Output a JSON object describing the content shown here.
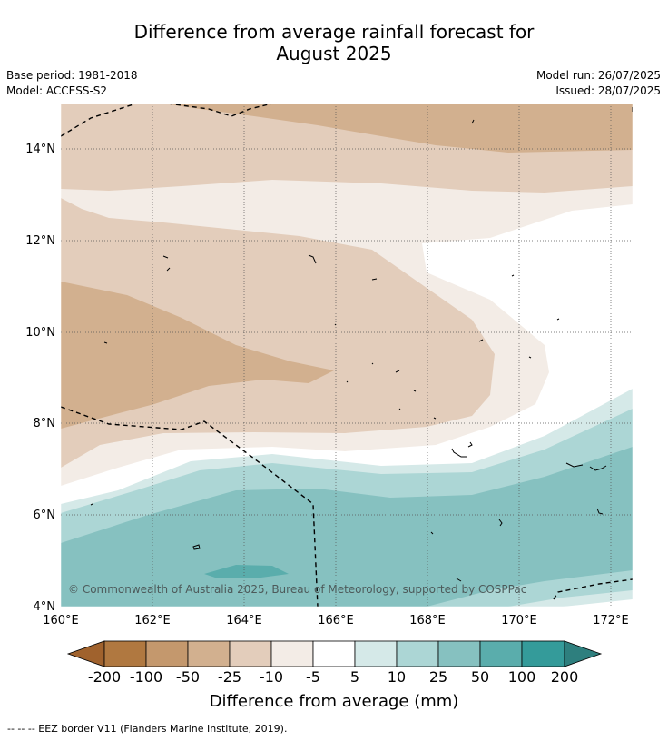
{
  "header": {
    "title_line1": "Difference from average rainfall forecast for",
    "title_line2": "August 2025",
    "base_period": "Base period: 1981-2018",
    "model": "Model: ACCESS-S2",
    "model_run": "Model run: 26/07/2025",
    "issued": "Issued: 28/07/2025"
  },
  "map": {
    "lon_ticks": [
      "160°E",
      "162°E",
      "164°E",
      "166°E",
      "168°E",
      "170°E",
      "172°E"
    ],
    "lat_ticks": [
      "14°N",
      "12°N",
      "10°N",
      "8°N",
      "6°N",
      "4°N"
    ],
    "lon_range": [
      160,
      172.5
    ],
    "lat_range": [
      4,
      15
    ],
    "copyright": "© Commonwealth of Australia 2025, Bureau of Meteorology, supported by COSPPac"
  },
  "colorbar": {
    "title": "Difference from average (mm)",
    "labels": [
      "-200",
      "-100",
      "-50",
      "-25",
      "-10",
      "-5",
      "5",
      "10",
      "25",
      "50",
      "100",
      "200"
    ],
    "colors": [
      "#a0622d",
      "#b07840",
      "#c4986d",
      "#d2b08f",
      "#e3cdbb",
      "#f3ece6",
      "#ffffff",
      "#d5e9e8",
      "#acd6d5",
      "#86c1c0",
      "#5aadac",
      "#349b9a",
      "#2e7f7e"
    ]
  },
  "footnote": {
    "text": "--  --  -- EEZ border V11 (Flanders Marine Institute, 2019)."
  }
}
